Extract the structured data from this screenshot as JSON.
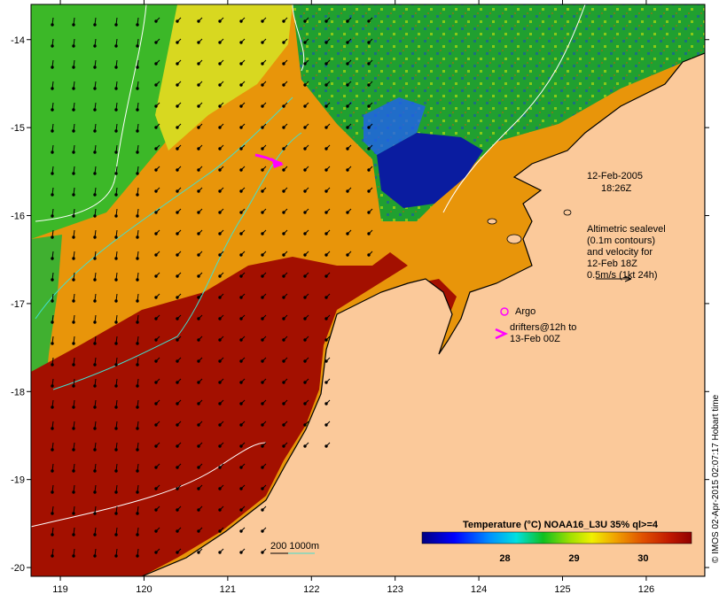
{
  "map": {
    "lon_range": [
      118.65,
      126.7
    ],
    "lat_range": [
      -20.1,
      -13.6
    ],
    "x_ticks": [
      119,
      120,
      121,
      122,
      123,
      124,
      125,
      126
    ],
    "x_tick_labels": [
      "119",
      "120",
      "121",
      "122",
      "123",
      "124",
      "125",
      "126"
    ],
    "y_ticks": [
      -14,
      -15,
      -16,
      -17,
      -18,
      -19,
      -20
    ],
    "y_tick_labels": [
      "-14",
      "-15",
      "-16",
      "-17",
      "-18",
      "-19",
      "-20"
    ]
  },
  "annotations": {
    "date": "12-Feb-2005",
    "time": "18:26Z",
    "altimetry": [
      "Altimetric sealevel",
      "(0.1m contours)",
      "and velocity for",
      "12-Feb 18Z",
      "0.5m/s (1kt 24h)"
    ],
    "argo_label": "Argo",
    "drifters": [
      "drifters@12h to",
      "13-Feb 00Z"
    ],
    "isobath_label": "200  1000m"
  },
  "colorbar": {
    "title": "Temperature (°C) NOAA16_L3U 35% ql>=4",
    "range": [
      26.8,
      30.7
    ],
    "ticks": [
      28,
      29,
      30
    ],
    "tick_labels": [
      "28",
      "29",
      "30"
    ]
  },
  "credit": "© IMOS 02-Apr-2015 02:07:17 Hobart time",
  "colors": {
    "land": "#fbc99a",
    "hot_water": "#a31000",
    "warm_water": "#e8950a",
    "drifter": "#ff00ff",
    "isobath_1000": "#40e0d0",
    "contour": "#ffffff"
  }
}
